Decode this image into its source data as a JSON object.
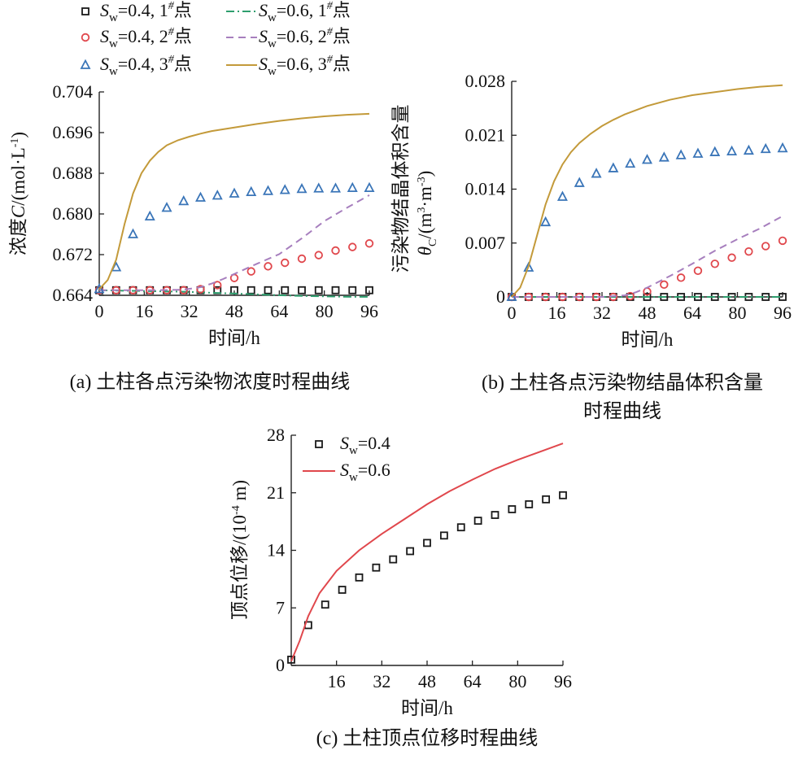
{
  "colors": {
    "black": "#1a1a1a",
    "green": "#2e9e6e",
    "red": "#e0474c",
    "purple": "#a77fbe",
    "blue": "#3a75b8",
    "gold": "#c39a3a",
    "solid_red": "#e0474c"
  },
  "legend_top": {
    "items": [
      {
        "sym": "S",
        "sub": "w",
        "text": "=0.4, 1",
        "sup": "#",
        "tail": "点",
        "marker": "square",
        "color": "black"
      },
      {
        "sym": "S",
        "sub": "w",
        "text": "=0.6, 1",
        "sup": "#",
        "tail": "点",
        "marker": "dashdot",
        "color": "green"
      },
      {
        "sym": "S",
        "sub": "w",
        "text": "=0.4, 2",
        "sup": "#",
        "tail": "点",
        "marker": "circle",
        "color": "red"
      },
      {
        "sym": "S",
        "sub": "w",
        "text": "=0.6, 2",
        "sup": "#",
        "tail": "点",
        "marker": "dash",
        "color": "purple"
      },
      {
        "sym": "S",
        "sub": "w",
        "text": "=0.4, 3",
        "sup": "#",
        "tail": "点",
        "marker": "triangle",
        "color": "blue"
      },
      {
        "sym": "S",
        "sub": "w",
        "text": "=0.6, 3",
        "sup": "#",
        "tail": "点",
        "marker": "solid",
        "color": "gold"
      }
    ]
  },
  "chart_data": [
    {
      "type": "line",
      "caption": "(a) 土柱各点污染物浓度时程曲线",
      "xlabel": "时间/h",
      "ylabel": "浓度C/(mol·L⁻¹)",
      "ylabel_parts": {
        "pre": "浓度",
        "sym": "C",
        "post": "/(mol·L",
        "sup": "-1",
        "end": ")"
      },
      "xlim": [
        0,
        96
      ],
      "ylim": [
        0.664,
        0.704
      ],
      "xticks": [
        "0",
        "16",
        "32",
        "48",
        "64",
        "80",
        "96"
      ],
      "yticks": [
        "0.664",
        "0.672",
        "0.680",
        "0.688",
        "0.696",
        "0.704"
      ],
      "series": [
        {
          "name": "Sw=0.4, 1#点",
          "style": "square",
          "color": "black",
          "x": [
            0,
            6,
            12,
            18,
            24,
            30,
            36,
            42,
            48,
            54,
            60,
            66,
            72,
            78,
            84,
            90,
            96
          ],
          "y": [
            0.665,
            0.665,
            0.665,
            0.665,
            0.665,
            0.665,
            0.665,
            0.665,
            0.665,
            0.665,
            0.665,
            0.665,
            0.665,
            0.665,
            0.665,
            0.665,
            0.665
          ]
        },
        {
          "name": "Sw=0.6, 1#点",
          "style": "dashdot",
          "color": "green",
          "x": [
            0,
            10,
            20,
            30,
            40,
            50,
            60,
            70,
            80,
            90,
            96
          ],
          "y": [
            0.665,
            0.6649,
            0.6648,
            0.6647,
            0.6645,
            0.6643,
            0.6641,
            0.6639,
            0.6638,
            0.6637,
            0.6637
          ]
        },
        {
          "name": "Sw=0.4, 2#点",
          "style": "circle",
          "color": "red",
          "x": [
            0,
            6,
            12,
            18,
            24,
            30,
            36,
            42,
            48,
            54,
            60,
            66,
            72,
            78,
            84,
            90,
            96
          ],
          "y": [
            0.665,
            0.665,
            0.665,
            0.665,
            0.665,
            0.665,
            0.6652,
            0.666,
            0.6674,
            0.6687,
            0.6697,
            0.6704,
            0.6712,
            0.6719,
            0.6728,
            0.6735,
            0.6742
          ]
        },
        {
          "name": "Sw=0.6, 2#点",
          "style": "dash",
          "color": "purple",
          "x": [
            0,
            10,
            20,
            30,
            36,
            40,
            44,
            48,
            56,
            64,
            72,
            80,
            88,
            96
          ],
          "y": [
            0.665,
            0.665,
            0.665,
            0.6651,
            0.6656,
            0.6663,
            0.6672,
            0.6682,
            0.6702,
            0.6721,
            0.6752,
            0.6786,
            0.6812,
            0.6837
          ]
        },
        {
          "name": "Sw=0.4, 3#点",
          "style": "triangle",
          "color": "blue",
          "x": [
            0,
            6,
            12,
            18,
            24,
            30,
            36,
            42,
            48,
            54,
            60,
            66,
            72,
            78,
            84,
            90,
            96
          ],
          "y": [
            0.6652,
            0.6695,
            0.676,
            0.6795,
            0.6812,
            0.6825,
            0.6832,
            0.6836,
            0.684,
            0.6843,
            0.6845,
            0.6847,
            0.6849,
            0.685,
            0.685,
            0.6851,
            0.6851
          ]
        },
        {
          "name": "Sw=0.6, 3#点",
          "style": "solid",
          "color": "gold",
          "x": [
            0,
            3,
            6,
            9,
            12,
            15,
            18,
            21,
            24,
            28,
            32,
            36,
            40,
            48,
            56,
            64,
            72,
            80,
            88,
            96
          ],
          "y": [
            0.6652,
            0.667,
            0.671,
            0.678,
            0.684,
            0.688,
            0.6905,
            0.6922,
            0.6935,
            0.6945,
            0.6952,
            0.6958,
            0.6963,
            0.697,
            0.6977,
            0.6983,
            0.6988,
            0.6992,
            0.6995,
            0.6997
          ]
        }
      ]
    },
    {
      "type": "line",
      "caption": "(b) 土柱各点污染物结晶体积含量",
      "caption2": "时程曲线",
      "xlabel": "时间/h",
      "ylabel": "污染物结晶体积含量",
      "ylabel2_parts": {
        "sym": "θ",
        "sub": "C",
        "post": "/(m",
        "sup1": "3",
        "mid": "·m",
        "sup2": "-3",
        "end": ")"
      },
      "xlim": [
        0,
        96
      ],
      "ylim": [
        0,
        0.028
      ],
      "xticks": [
        "0",
        "16",
        "32",
        "48",
        "64",
        "80",
        "96"
      ],
      "yticks": [
        "0",
        "0.007",
        "0.014",
        "0.021",
        "0.028"
      ],
      "series": [
        {
          "name": "Sw=0.4, 1#点",
          "style": "square",
          "color": "black",
          "x": [
            0,
            6,
            12,
            18,
            24,
            30,
            36,
            42,
            48,
            54,
            60,
            66,
            72,
            78,
            84,
            90,
            96
          ],
          "y": [
            0,
            0,
            0,
            0,
            0,
            0,
            0,
            0,
            0,
            0,
            0,
            0,
            0,
            0,
            0,
            0,
            0
          ]
        },
        {
          "name": "Sw=0.6, 1#点",
          "style": "dashdot",
          "color": "green",
          "x": [
            0,
            16,
            32,
            48,
            64,
            80,
            96
          ],
          "y": [
            0,
            0,
            0,
            0,
            0,
            0,
            0
          ]
        },
        {
          "name": "Sw=0.4, 2#点",
          "style": "circle",
          "color": "red",
          "x": [
            0,
            6,
            12,
            18,
            24,
            30,
            36,
            42,
            48,
            54,
            60,
            66,
            72,
            78,
            84,
            90,
            96
          ],
          "y": [
            0,
            0,
            0,
            0,
            0,
            0,
            0,
            0.0001,
            0.0007,
            0.0016,
            0.0025,
            0.0034,
            0.0043,
            0.0051,
            0.0059,
            0.0066,
            0.0073
          ]
        },
        {
          "name": "Sw=0.6, 2#点",
          "style": "dash",
          "color": "purple",
          "x": [
            0,
            16,
            32,
            40,
            44,
            48,
            56,
            64,
            72,
            80,
            88,
            96
          ],
          "y": [
            0,
            0,
            0,
            0.0002,
            0.0006,
            0.0012,
            0.0027,
            0.0043,
            0.006,
            0.0075,
            0.0089,
            0.0105
          ]
        },
        {
          "name": "Sw=0.4, 3#点",
          "style": "triangle",
          "color": "blue",
          "x": [
            0,
            6,
            12,
            18,
            24,
            30,
            36,
            42,
            48,
            54,
            60,
            66,
            72,
            78,
            84,
            90,
            96
          ],
          "y": [
            0,
            0.0038,
            0.0097,
            0.013,
            0.0148,
            0.016,
            0.0167,
            0.0173,
            0.0178,
            0.0181,
            0.0184,
            0.0186,
            0.0188,
            0.0189,
            0.019,
            0.0192,
            0.0193
          ]
        },
        {
          "name": "Sw=0.6, 3#点",
          "style": "solid",
          "color": "gold",
          "x": [
            0,
            3,
            6,
            9,
            12,
            15,
            18,
            21,
            24,
            28,
            32,
            36,
            40,
            48,
            56,
            64,
            72,
            80,
            88,
            96
          ],
          "y": [
            0,
            0.0012,
            0.004,
            0.008,
            0.012,
            0.015,
            0.0172,
            0.0188,
            0.02,
            0.0212,
            0.0222,
            0.023,
            0.0237,
            0.0248,
            0.0256,
            0.0262,
            0.0266,
            0.027,
            0.0273,
            0.0275
          ]
        }
      ]
    },
    {
      "type": "line",
      "caption": "(c) 土柱顶点位移时程曲线",
      "xlabel": "时间/h",
      "ylabel": "顶点位移/(10⁻⁴ m)",
      "ylabel_parts": {
        "pre": "顶点位移/(10",
        "sup": "-4",
        "end": " m)"
      },
      "xlim": [
        0,
        96
      ],
      "ylim": [
        0,
        28
      ],
      "xticks": [
        "16",
        "32",
        "48",
        "64",
        "80",
        "96"
      ],
      "yticks": [
        "0",
        "7",
        "14",
        "21",
        "28"
      ],
      "legend": [
        {
          "sym": "S",
          "sub": "w",
          "text": "=0.4",
          "marker": "square",
          "color": "black"
        },
        {
          "sym": "S",
          "sub": "w",
          "text": "=0.6",
          "marker": "solid",
          "color": "solid_red"
        }
      ],
      "series": [
        {
          "name": "Sw=0.4",
          "style": "square",
          "color": "black",
          "x": [
            0,
            6,
            12,
            18,
            24,
            30,
            36,
            42,
            48,
            54,
            60,
            66,
            72,
            78,
            84,
            90,
            96
          ],
          "y": [
            0.7,
            4.9,
            7.4,
            9.2,
            10.7,
            11.9,
            12.9,
            13.9,
            14.9,
            15.8,
            16.8,
            17.6,
            18.3,
            19.0,
            19.6,
            20.2,
            20.7
          ]
        },
        {
          "name": "Sw=0.6",
          "style": "solid",
          "color": "solid_red",
          "x": [
            0,
            3,
            6,
            10,
            16,
            24,
            32,
            40,
            48,
            56,
            64,
            72,
            80,
            88,
            96
          ],
          "y": [
            0.5,
            3.0,
            6.0,
            8.8,
            11.5,
            14.0,
            16.0,
            17.8,
            19.6,
            21.2,
            22.6,
            23.9,
            25.0,
            26.0,
            27.0
          ]
        }
      ]
    }
  ]
}
